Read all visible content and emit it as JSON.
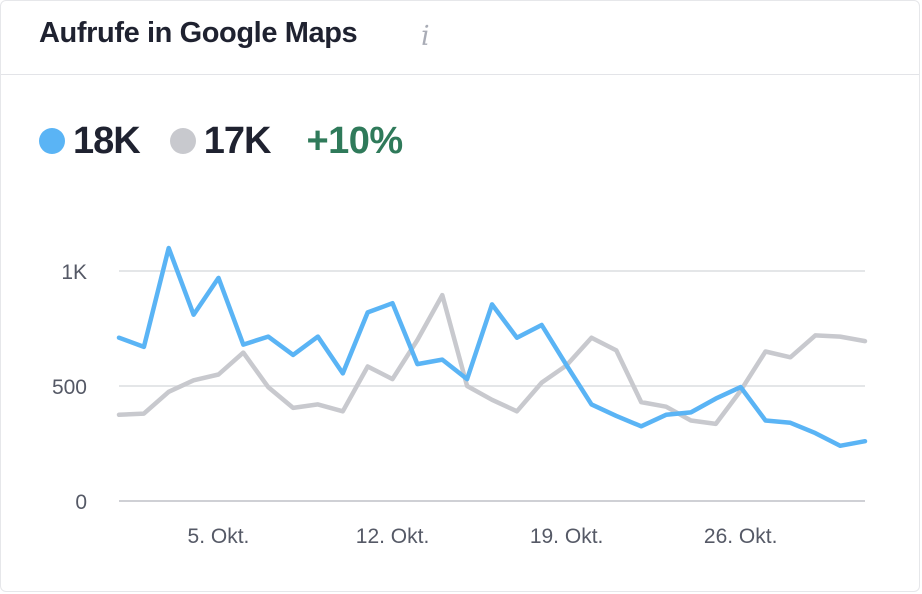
{
  "widget": {
    "title": "Aufrufe in Google Maps",
    "info_icon": "info-icon",
    "info_glyph": "i"
  },
  "kpis": {
    "current": {
      "value": "18K",
      "color": "#5ab4f5"
    },
    "previous": {
      "value": "17K",
      "color": "#c8c9ce"
    },
    "change": {
      "value": "+10%",
      "color": "#2f7a5a"
    }
  },
  "chart_data": {
    "type": "line",
    "title": "Aufrufe in Google Maps",
    "xlabel": "",
    "ylabel": "",
    "ylim": [
      0,
      1000
    ],
    "grid": true,
    "y_ticks": [
      0,
      500,
      1000
    ],
    "y_tick_labels": [
      "0",
      "500",
      "1K"
    ],
    "x_tick_labels": [
      {
        "index": 4,
        "label": "5. Okt."
      },
      {
        "index": 11,
        "label": "12. Okt."
      },
      {
        "index": 18,
        "label": "19. Okt."
      },
      {
        "index": 25,
        "label": "26. Okt."
      }
    ],
    "series": [
      {
        "name": "current",
        "color": "#5ab4f5",
        "values": [
          710,
          670,
          1100,
          810,
          970,
          680,
          715,
          635,
          715,
          555,
          820,
          860,
          595,
          615,
          530,
          855,
          710,
          765,
          590,
          420,
          370,
          325,
          375,
          385,
          445,
          495,
          350,
          340,
          295,
          240,
          260
        ]
      },
      {
        "name": "previous",
        "color": "#c8c9ce",
        "values": [
          375,
          380,
          475,
          525,
          550,
          645,
          495,
          405,
          420,
          390,
          585,
          530,
          700,
          895,
          500,
          440,
          390,
          515,
          590,
          710,
          655,
          430,
          410,
          350,
          335,
          480,
          650,
          625,
          720,
          715,
          695
        ]
      }
    ]
  }
}
